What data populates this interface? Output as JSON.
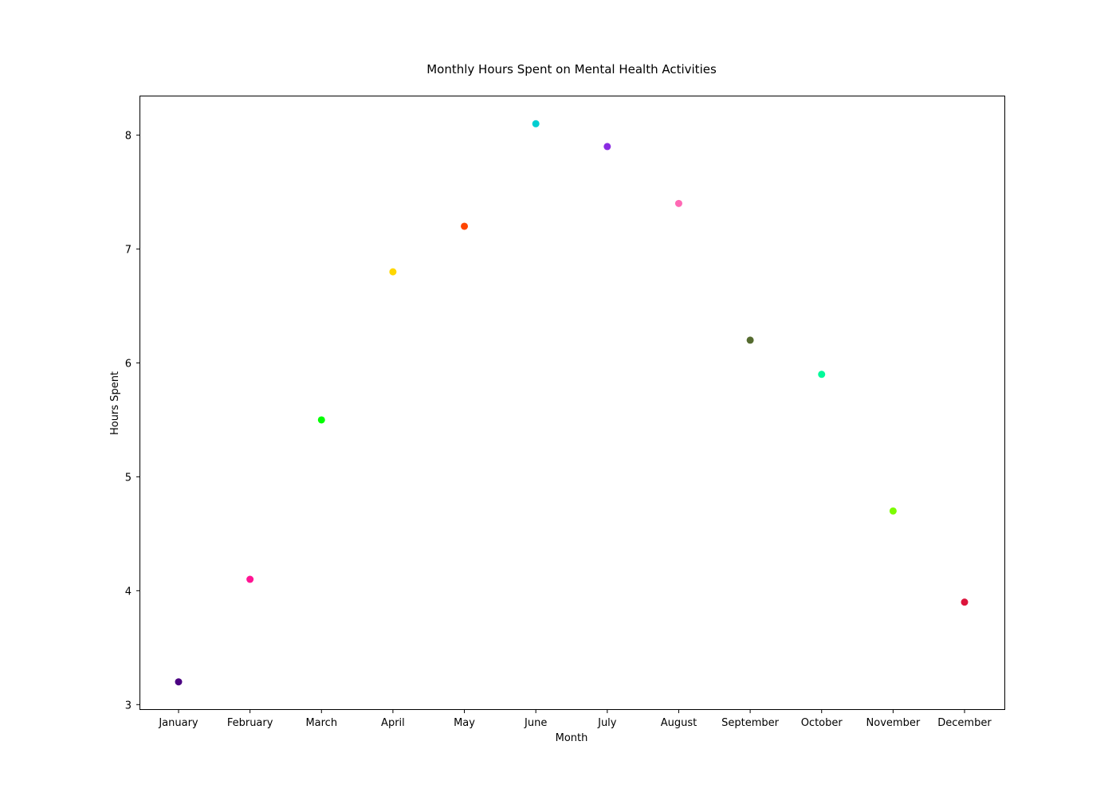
{
  "chart_data": {
    "type": "scatter",
    "title": "Monthly Hours Spent on Mental Health Activities",
    "xlabel": "Month",
    "ylabel": "Hours Spent",
    "categories": [
      "January",
      "February",
      "March",
      "April",
      "May",
      "June",
      "July",
      "August",
      "September",
      "October",
      "November",
      "December"
    ],
    "values": [
      3.2,
      4.1,
      5.5,
      6.8,
      7.2,
      8.1,
      7.9,
      7.4,
      6.2,
      5.9,
      4.7,
      3.9
    ],
    "point_colors": [
      "#4b0082",
      "#ff1493",
      "#00ff00",
      "#ffd700",
      "#ff4500",
      "#00ced1",
      "#8a2be2",
      "#ff69b4",
      "#556b2f",
      "#00fa9a",
      "#7cfc00",
      "#dc143c"
    ],
    "ylim": [
      2.96,
      8.34
    ],
    "yticks": [
      3,
      4,
      5,
      6,
      7,
      8
    ],
    "grid": false,
    "legend": "none"
  }
}
